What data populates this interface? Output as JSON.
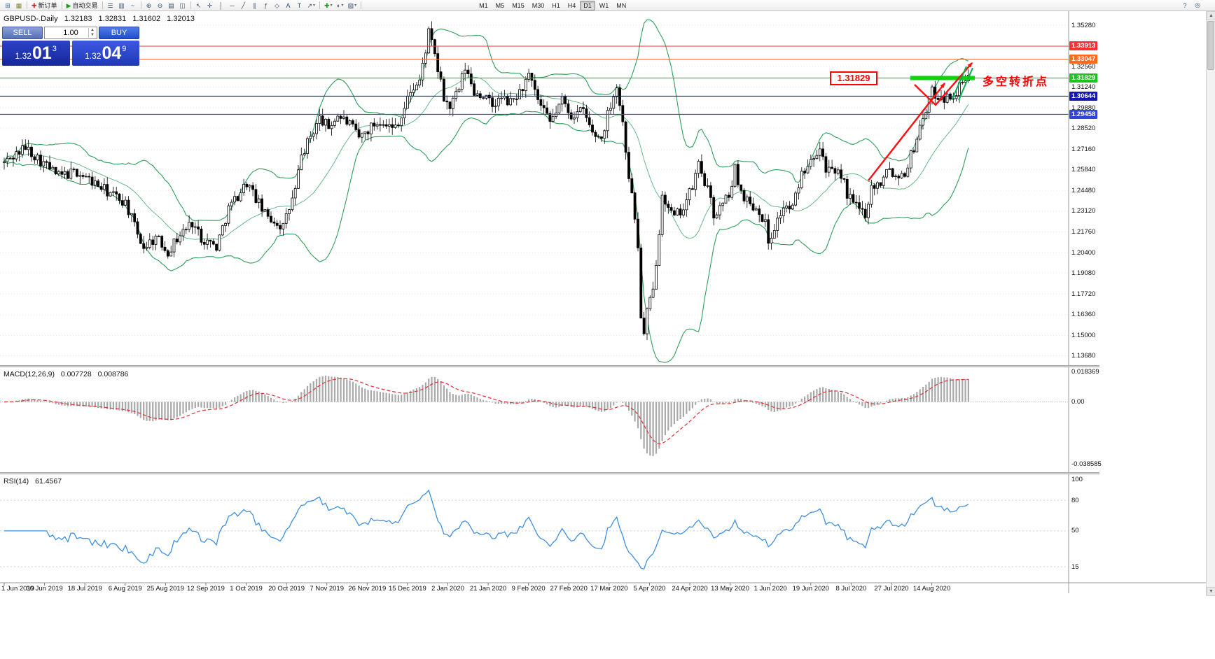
{
  "toolbar": {
    "buttons": [
      {
        "name": "new-chart",
        "glyph": "⊞",
        "glyph_color": "#336699"
      },
      {
        "name": "chart-profiles",
        "glyph": "▦",
        "glyph_color": "#888833"
      },
      {
        "sep": true
      },
      {
        "name": "new-order",
        "glyph": "✚",
        "glyph_color": "#cc2222",
        "label": "新订单"
      },
      {
        "sep": true
      },
      {
        "name": "autotrading",
        "glyph": "▶",
        "glyph_color": "#1a9e1a",
        "label": "自动交易"
      },
      {
        "sep": true
      },
      {
        "name": "bar-chart",
        "glyph": "☰"
      },
      {
        "name": "candlestick-chart",
        "glyph": "▥"
      },
      {
        "name": "line-chart",
        "glyph": "~"
      },
      {
        "sep": true
      },
      {
        "name": "zoom-in",
        "glyph": "⊕"
      },
      {
        "name": "zoom-out",
        "glyph": "⊖"
      },
      {
        "name": "auto-arrange",
        "glyph": "▤"
      },
      {
        "name": "tile-windows",
        "glyph": "◫"
      },
      {
        "sep": true
      },
      {
        "name": "cursor",
        "glyph": "↖"
      },
      {
        "name": "crosshair",
        "glyph": "✛"
      },
      {
        "name": "vertical-line",
        "glyph": "│"
      },
      {
        "name": "horizontal-line",
        "glyph": "─"
      },
      {
        "name": "trendline",
        "glyph": "╱"
      },
      {
        "name": "equidistant-channel",
        "glyph": "∥"
      },
      {
        "name": "fibonacci",
        "glyph": "ƒ"
      },
      {
        "name": "shapes",
        "glyph": "◇"
      },
      {
        "name": "text",
        "glyph": "A"
      },
      {
        "name": "text-label",
        "glyph": "T"
      },
      {
        "name": "arrows",
        "glyph": "↗",
        "dropdown": true
      },
      {
        "sep": true
      },
      {
        "name": "indicators",
        "glyph": "✚",
        "glyph_color": "#1a9e1a",
        "dropdown": true
      },
      {
        "name": "periods",
        "glyph": "◐",
        "dropdown": true
      },
      {
        "name": "templates",
        "glyph": "▧",
        "dropdown": true
      },
      {
        "sep": true
      }
    ],
    "timeframes": [
      "M1",
      "M5",
      "M15",
      "M30",
      "H1",
      "H4",
      "D1",
      "W1",
      "MN"
    ],
    "active_timeframe": "D1",
    "right_buttons": [
      {
        "name": "help",
        "glyph": "?"
      },
      {
        "name": "search",
        "glyph": "◎"
      }
    ]
  },
  "quote": {
    "symbol": "GBPUSD-.Daily",
    "open": "1.32183",
    "high": "1.32831",
    "low": "1.31602",
    "close": "1.32013"
  },
  "trade_panel": {
    "sell_label": "SELL",
    "buy_label": "BUY",
    "volume": "1.00",
    "sell_price_base": "1.32",
    "sell_price_big": "01",
    "sell_price_sup": "3",
    "buy_price_base": "1.32",
    "buy_price_big": "04",
    "buy_price_sup": "9"
  },
  "annotations": {
    "price_flag": "1.31829",
    "turning_point_text": "多空转折点",
    "accent_color": "#ff0000",
    "highlight_color": "#00d400"
  },
  "indicators": {
    "macd": {
      "title": "MACD(12,26,9)",
      "main_value": "0.007728",
      "signal_value": "0.008786",
      "scale": [
        {
          "label": "0.018369",
          "value": 0.018369
        },
        {
          "label": "0.00",
          "value": 0
        },
        {
          "label": "-0.038585",
          "value": -0.038585
        }
      ]
    },
    "rsi": {
      "title": "RSI(14)",
      "value": "61.4567",
      "scale": [
        {
          "label": "100",
          "value": 100
        },
        {
          "label": "80",
          "value": 80,
          "line": true
        },
        {
          "label": "50",
          "value": 50,
          "line": true
        },
        {
          "label": "15",
          "value": 15,
          "line": true
        }
      ]
    }
  },
  "chart_data": {
    "type": "candlestick",
    "title": "GBPUSD-.Daily",
    "timeframe": "Daily",
    "ohlc_current": {
      "open": 1.32183,
      "high": 1.32831,
      "low": 1.31602,
      "close": 1.32013
    },
    "y_axis": {
      "min": 1.131,
      "max": 1.362,
      "ticks": [
        "1.35280",
        "1.32560",
        "1.31240",
        "1.29880",
        "1.28520",
        "1.27160",
        "1.25840",
        "1.24480",
        "1.23120",
        "1.21760",
        "1.20400",
        "1.19080",
        "1.17720",
        "1.16360",
        "1.15000",
        "1.13680"
      ]
    },
    "levels": [
      {
        "price": 1.33913,
        "label": "1.33913",
        "color": "#ff3030"
      },
      {
        "price": 1.33047,
        "label": "1.33047",
        "color": "#ff6a1e"
      },
      {
        "price": 1.31829,
        "label": "1.31829",
        "color": "#1ec41e"
      },
      {
        "price": 1.30644,
        "label": "1.30644",
        "color": "#1515b0"
      },
      {
        "price": 1.29458,
        "label": "1.29458",
        "color": "#3344dd"
      }
    ],
    "x_axis_dates": [
      "1 Jun 2019",
      "30 Jun 2019",
      "18 Jul 2019",
      "6 Aug 2019",
      "25 Aug 2019",
      "12 Sep 2019",
      "1 Oct 2019",
      "20 Oct 2019",
      "7 Nov 2019",
      "26 Nov 2019",
      "15 Dec 2019",
      "2 Jan 2020",
      "21 Jan 2020",
      "9 Feb 2020",
      "27 Feb 2020",
      "17 Mar 2020",
      "5 Apr 2020",
      "24 Apr 2020",
      "13 May 2020",
      "1 Jun 2020",
      "19 Jun 2020",
      "8 Jul 2020",
      "27 Jul 2020",
      "14 Aug 2020"
    ],
    "candles_approx": {
      "count": 319,
      "keyframes": [
        [
          0,
          1.263
        ],
        [
          7,
          1.273
        ],
        [
          18,
          1.254
        ],
        [
          24,
          1.257
        ],
        [
          34,
          1.244
        ],
        [
          40,
          1.237
        ],
        [
          44,
          1.216
        ],
        [
          46,
          1.208
        ],
        [
          50,
          1.214
        ],
        [
          54,
          1.205
        ],
        [
          58,
          1.216
        ],
        [
          62,
          1.224
        ],
        [
          65,
          1.214
        ],
        [
          70,
          1.208
        ],
        [
          74,
          1.233
        ],
        [
          80,
          1.25
        ],
        [
          86,
          1.229
        ],
        [
          92,
          1.221
        ],
        [
          96,
          1.245
        ],
        [
          98,
          1.267
        ],
        [
          101,
          1.28
        ],
        [
          104,
          1.292
        ],
        [
          107,
          1.286
        ],
        [
          110,
          1.294
        ],
        [
          114,
          1.288
        ],
        [
          117,
          1.279
        ],
        [
          122,
          1.288
        ],
        [
          125,
          1.291
        ],
        [
          128,
          1.285
        ],
        [
          131,
          1.293
        ],
        [
          134,
          1.31
        ],
        [
          137,
          1.316
        ],
        [
          140,
          1.348
        ],
        [
          142,
          1.333
        ],
        [
          145,
          1.305
        ],
        [
          147,
          1.299
        ],
        [
          150,
          1.311
        ],
        [
          152,
          1.325
        ],
        [
          155,
          1.309
        ],
        [
          158,
          1.307
        ],
        [
          161,
          1.3
        ],
        [
          164,
          1.305
        ],
        [
          167,
          1.302
        ],
        [
          170,
          1.309
        ],
        [
          173,
          1.319
        ],
        [
          177,
          1.299
        ],
        [
          180,
          1.289
        ],
        [
          184,
          1.304
        ],
        [
          187,
          1.294
        ],
        [
          191,
          1.297
        ],
        [
          194,
          1.282
        ],
        [
          197,
          1.279
        ],
        [
          200,
          1.302
        ],
        [
          202,
          1.313
        ],
        [
          204,
          1.289
        ],
        [
          206,
          1.255
        ],
        [
          208,
          1.227
        ],
        [
          209,
          1.207
        ],
        [
          210,
          1.163
        ],
        [
          211,
          1.15
        ],
        [
          212,
          1.165
        ],
        [
          214,
          1.179
        ],
        [
          216,
          1.219
        ],
        [
          217,
          1.245
        ],
        [
          219,
          1.232
        ],
        [
          221,
          1.227
        ],
        [
          224,
          1.234
        ],
        [
          227,
          1.247
        ],
        [
          229,
          1.262
        ],
        [
          232,
          1.245
        ],
        [
          234,
          1.229
        ],
        [
          237,
          1.235
        ],
        [
          240,
          1.247
        ],
        [
          241,
          1.259
        ],
        [
          243,
          1.244
        ],
        [
          246,
          1.236
        ],
        [
          249,
          1.232
        ],
        [
          251,
          1.223
        ],
        [
          252,
          1.211
        ],
        [
          254,
          1.221
        ],
        [
          257,
          1.234
        ],
        [
          260,
          1.233
        ],
        [
          263,
          1.256
        ],
        [
          266,
          1.267
        ],
        [
          269,
          1.273
        ],
        [
          271,
          1.26
        ],
        [
          274,
          1.254
        ],
        [
          276,
          1.256
        ],
        [
          278,
          1.242
        ],
        [
          281,
          1.234
        ],
        [
          284,
          1.23
        ],
        [
          286,
          1.247
        ],
        [
          289,
          1.25
        ],
        [
          291,
          1.261
        ],
        [
          294,
          1.254
        ],
        [
          297,
          1.257
        ],
        [
          300,
          1.273
        ],
        [
          303,
          1.293
        ],
        [
          306,
          1.309
        ],
        [
          308,
          1.307
        ],
        [
          311,
          1.305
        ],
        [
          314,
          1.309
        ],
        [
          316,
          1.315
        ],
        [
          318,
          1.32
        ]
      ]
    },
    "overlays": {
      "bollinger": {
        "period": 20,
        "deviation": 2,
        "color": "#2e9e5b"
      }
    },
    "macd": {
      "fast": 12,
      "slow": 26,
      "signal": 9,
      "range": [
        -0.0425,
        0.0205
      ],
      "bar_color": "#a9a9a9",
      "signal_color": "#e03030"
    },
    "rsi": {
      "period": 14,
      "range": [
        0,
        104
      ],
      "color": "#3d8fe0"
    }
  }
}
